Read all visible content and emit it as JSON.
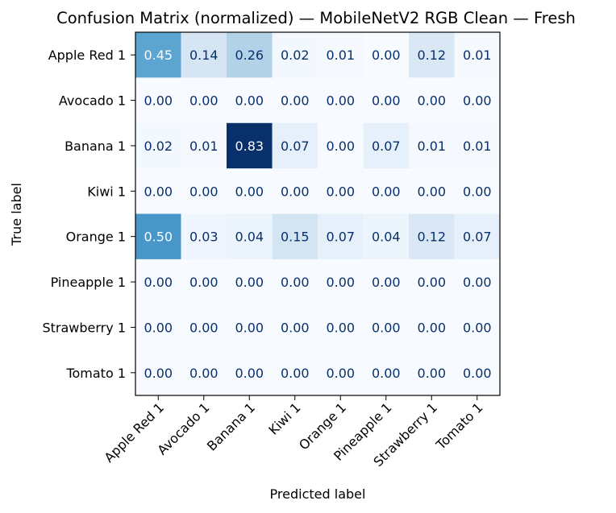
{
  "chart_data": {
    "type": "heatmap",
    "title": "Confusion Matrix (normalized) — MobileNetV2 RGB Clean — Fresh",
    "xlabel": "Predicted label",
    "ylabel": "True label",
    "x_categories": [
      "Apple Red 1",
      "Avocado 1",
      "Banana 1",
      "Kiwi 1",
      "Orange 1",
      "Pineapple 1",
      "Strawberry 1",
      "Tomato 1"
    ],
    "y_categories": [
      "Apple Red 1",
      "Avocado 1",
      "Banana 1",
      "Kiwi 1",
      "Orange 1",
      "Pineapple 1",
      "Strawberry 1",
      "Tomato 1"
    ],
    "values": [
      [
        0.45,
        0.14,
        0.26,
        0.02,
        0.01,
        0.0,
        0.12,
        0.01
      ],
      [
        0.0,
        0.0,
        0.0,
        0.0,
        0.0,
        0.0,
        0.0,
        0.0
      ],
      [
        0.02,
        0.01,
        0.83,
        0.07,
        0.0,
        0.07,
        0.01,
        0.01
      ],
      [
        0.0,
        0.0,
        0.0,
        0.0,
        0.0,
        0.0,
        0.0,
        0.0
      ],
      [
        0.5,
        0.03,
        0.04,
        0.15,
        0.07,
        0.04,
        0.12,
        0.07
      ],
      [
        0.0,
        0.0,
        0.0,
        0.0,
        0.0,
        0.0,
        0.0,
        0.0
      ],
      [
        0.0,
        0.0,
        0.0,
        0.0,
        0.0,
        0.0,
        0.0,
        0.0
      ],
      [
        0.0,
        0.0,
        0.0,
        0.0,
        0.0,
        0.0,
        0.0,
        0.0
      ]
    ],
    "value_format": "0.00",
    "colormap": "Blues",
    "vmin": 0.0,
    "vmax": 0.83,
    "grid": false,
    "colorbar": false,
    "colors": {
      "low": "#f7fbff",
      "high": "#08306b",
      "text_dark": "#08306b",
      "text_light": "#f7fbff"
    }
  }
}
